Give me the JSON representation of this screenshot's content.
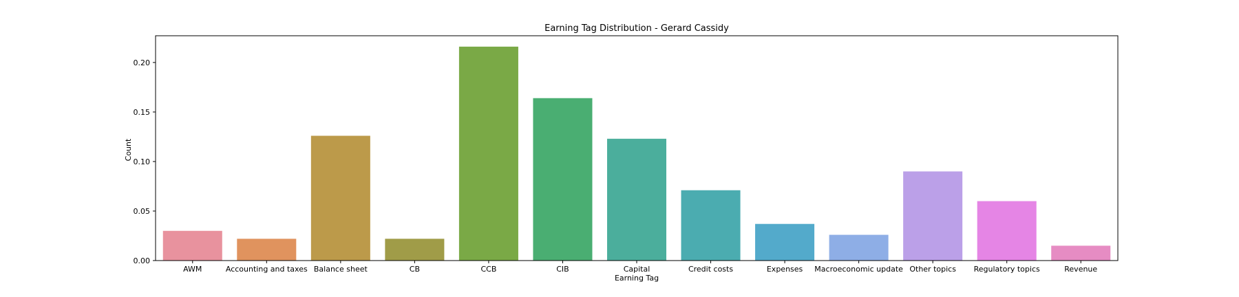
{
  "chart_data": {
    "type": "bar",
    "title": "Earning Tag Distribution - Gerard Cassidy",
    "xlabel": "Earning Tag",
    "ylabel": "Count",
    "ylim": [
      0,
      0.227
    ],
    "yticks": [
      0.0,
      0.05,
      0.1,
      0.15,
      0.2
    ],
    "ytick_labels": [
      "0.00",
      "0.05",
      "0.10",
      "0.15",
      "0.20"
    ],
    "grid": false,
    "legend": "none",
    "categories": [
      "AWM",
      "Accounting and taxes",
      "Balance sheet",
      "CB",
      "CCB",
      "CIB",
      "Capital",
      "Credit costs",
      "Expenses",
      "Macroeconomic update",
      "Other topics",
      "Regulatory topics",
      "Revenue"
    ],
    "values": [
      0.03,
      0.022,
      0.126,
      0.022,
      0.216,
      0.164,
      0.123,
      0.071,
      0.037,
      0.026,
      0.09,
      0.06,
      0.015
    ],
    "colors": [
      "#e8929e",
      "#e0935e",
      "#bc9a4a",
      "#a09c48",
      "#7aa946",
      "#4aae72",
      "#4bae9c",
      "#4bacb0",
      "#53aacb",
      "#8eaee6",
      "#bba0e8",
      "#e585e5",
      "#e68cc3"
    ]
  }
}
